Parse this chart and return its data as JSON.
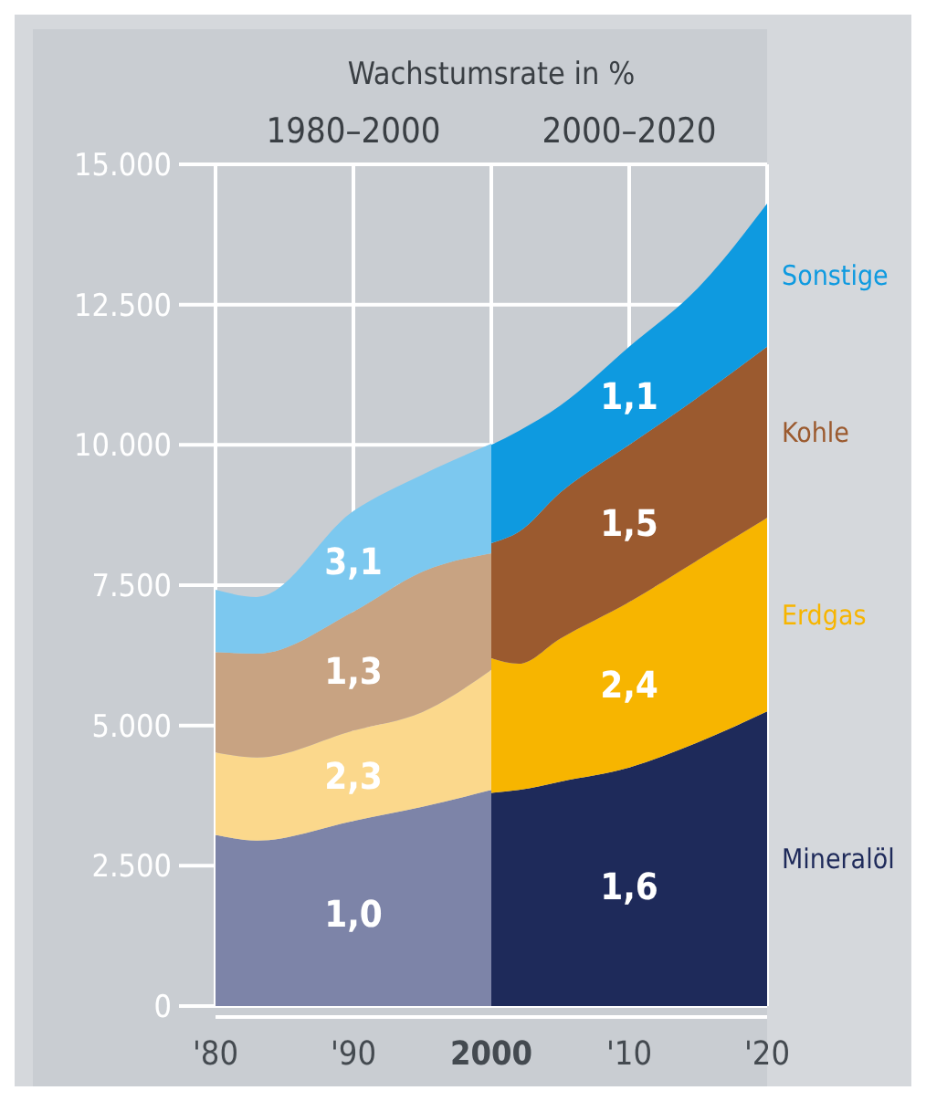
{
  "chart_data": [
    {
      "type": "area",
      "title": "Wachstumsrate in %",
      "subtitle": "1980–2000",
      "stacked": true,
      "grid": true,
      "x": [
        1980,
        1983,
        1990,
        1995,
        2000
      ],
      "xlim": [
        1980,
        2000
      ],
      "xticks": [
        {
          "value": 1980,
          "label": "'80"
        },
        {
          "value": 1990,
          "label": "'90"
        },
        2000
      ],
      "ylim": [
        0,
        15000
      ],
      "yticks": [
        0,
        {
          "value": 2500,
          "label": "2.500"
        },
        {
          "value": 5000,
          "label": "5.000"
        },
        {
          "value": 7500,
          "label": "7.500"
        },
        {
          "value": 10000,
          "label": "10.000"
        },
        {
          "value": 12500,
          "label": "12.500"
        },
        {
          "value": 15000,
          "label": "15.000"
        }
      ],
      "series": [
        {
          "color": "#7d84a8",
          "values": [
            3050,
            2950,
            3300,
            3550,
            3850
          ]
        },
        {
          "color": "#fbd88c",
          "values": [
            1470,
            1480,
            1610,
            1690,
            2140
          ]
        },
        {
          "color": "#c8a382",
          "values": [
            1790,
            1850,
            2120,
            2500,
            2080
          ]
        },
        {
          "color": "#7cc8ef",
          "values": [
            1110,
            1010,
            1790,
            1730,
            1950
          ]
        }
      ],
      "annotations": [
        "1,0",
        "2,3",
        "1,3",
        "3,1"
      ]
    },
    {
      "type": "area",
      "subtitle": "2000–2020",
      "stacked": true,
      "grid": true,
      "legend": "right",
      "tick_labels": "x",
      "x": [
        2000,
        2002,
        2005,
        2010,
        2015,
        2020
      ],
      "xlim": [
        2000,
        2020
      ],
      "xticks": [
        {
          "value": 2010,
          "label": "'10"
        },
        {
          "value": 2020,
          "label": "'20"
        }
      ],
      "ylim": [
        0,
        15000
      ],
      "yticks": [
        {
          "value": 0,
          "label": null
        },
        {
          "value": 2500,
          "label": null
        },
        {
          "value": 5000,
          "label": null
        },
        {
          "value": 7500,
          "label": null
        },
        {
          "value": 10000,
          "label": null
        },
        {
          "value": 12500,
          "label": null
        },
        {
          "value": 15000,
          "label": null
        }
      ],
      "series": [
        {
          "name": "Mineralöl",
          "color": "#1e2a5a",
          "values": [
            3800,
            3850,
            4000,
            4250,
            4700,
            5250
          ]
        },
        {
          "name": "Erdgas",
          "color": "#f7b500",
          "values": [
            2400,
            2250,
            2550,
            2950,
            3250,
            3450
          ]
        },
        {
          "name": "Kohle",
          "color": "#9b5a2f",
          "values": [
            2050,
            2350,
            2600,
            2800,
            2900,
            3050
          ]
        },
        {
          "name": "Sonstige",
          "color": "#0e9ae0",
          "values": [
            1750,
            1800,
            1550,
            1750,
            1950,
            2550
          ]
        }
      ],
      "annotations": [
        "1,6",
        "2,4",
        "1,5",
        "1,1"
      ]
    }
  ]
}
